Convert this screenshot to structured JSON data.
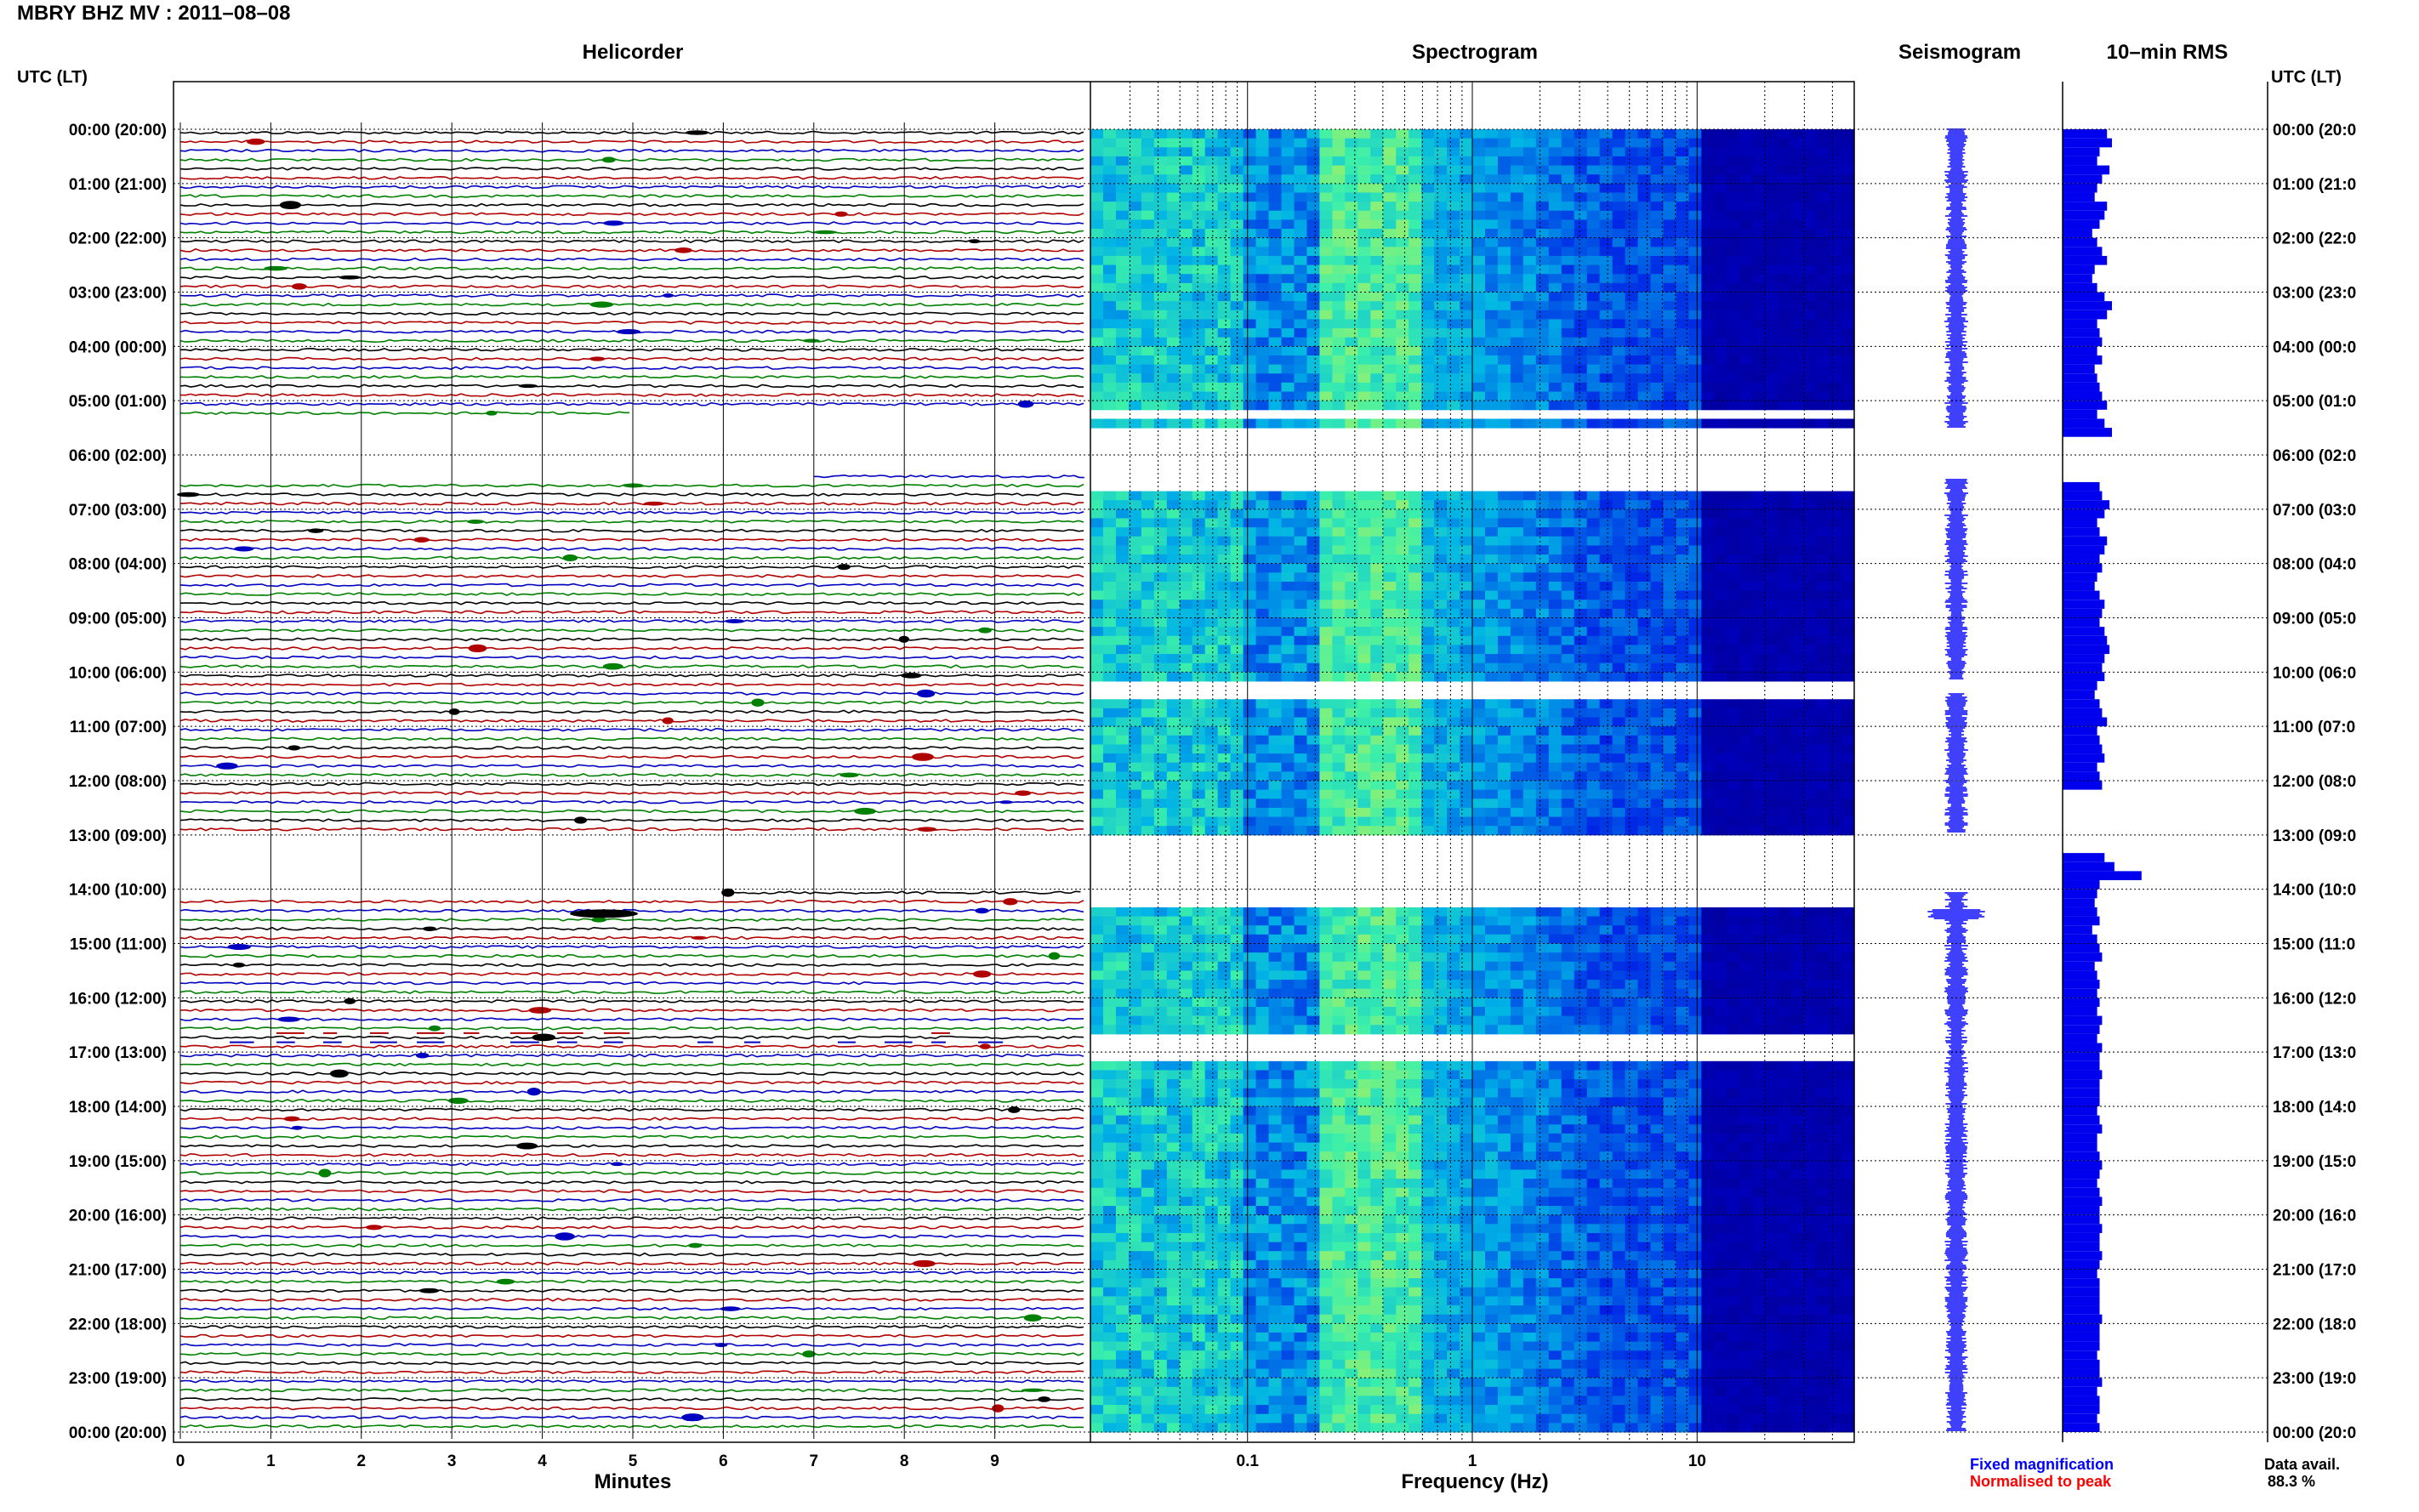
{
  "title": "MBRY BHZ MV : 2011–08–08",
  "left_axis_header": "UTC (LT)",
  "right_axis_header": "UTC (LT)",
  "panels": {
    "helicorder": "Helicorder",
    "spectrogram": "Spectrogram",
    "seismogram": "Seismogram",
    "rms": "10–min RMS"
  },
  "time_labels": [
    "00:00 (20:00)",
    "01:00 (21:00)",
    "02:00 (22:00)",
    "03:00 (23:00)",
    "04:00 (00:00)",
    "05:00 (01:00)",
    "06:00 (02:00)",
    "07:00 (03:00)",
    "08:00 (04:00)",
    "09:00 (05:00)",
    "10:00 (06:00)",
    "11:00 (07:00)",
    "12:00 (08:00)",
    "13:00 (09:00)",
    "14:00 (10:00)",
    "15:00 (11:00)",
    "16:00 (12:00)",
    "17:00 (13:00)",
    "18:00 (14:00)",
    "19:00 (15:00)",
    "20:00 (16:00)",
    "21:00 (17:00)",
    "22:00 (18:00)",
    "23:00 (19:00)",
    "00:00 (20:00)"
  ],
  "right_time_labels": [
    "00:00 (20:0",
    "01:00 (21:0",
    "02:00 (22:0",
    "03:00 (23:0",
    "04:00 (00:0",
    "05:00 (01:0",
    "06:00 (02:0",
    "07:00 (03:0",
    "08:00 (04:0",
    "09:00 (05:0",
    "10:00 (06:0",
    "11:00 (07:0",
    "12:00 (08:0",
    "13:00 (09:0",
    "14:00 (10:0",
    "15:00 (11:0",
    "16:00 (12:0",
    "17:00 (13:0",
    "18:00 (14:0",
    "19:00 (15:0",
    "20:00 (16:0",
    "21:00 (17:0",
    "22:00 (18:0",
    "23:00 (19:0",
    "00:00 (20:0"
  ],
  "minutes_axis": {
    "label": "Minutes",
    "ticks": [
      "0",
      "1",
      "2",
      "3",
      "4",
      "5",
      "6",
      "7",
      "8",
      "9"
    ]
  },
  "frequency_axis": {
    "label": "Frequency (Hz)",
    "ticks": [
      "0.1",
      "1",
      "10"
    ]
  },
  "legend": {
    "fixed": "Fixed magnification",
    "normalised": "Normalised to peak",
    "fixed_color": "#0000ff",
    "normalised_color": "#ff0000"
  },
  "data_avail": {
    "label": "Data avail.",
    "value": "88.3 %"
  },
  "colors": {
    "trace_cycle": [
      "#000000",
      "#b00000",
      "#0000c0",
      "#008000"
    ],
    "seismo": "#0000ff",
    "rms": "#0000ee"
  },
  "chart_data": {
    "type": "heatmap",
    "title": "MBRY BHZ MV : 2011–08–08",
    "helicorder": {
      "xlabel": "Minutes",
      "xlim": [
        0,
        10
      ],
      "rows_per_hour": 6,
      "hours": 24,
      "gaps_hours": [
        [
          5.25,
          6.45
        ],
        [
          13.0,
          14.1
        ]
      ],
      "notes": "6 traces per hour, colors cycling black/red/blue/green"
    },
    "spectrogram": {
      "xlabel": "Frequency (Hz)",
      "xscale": "log",
      "xlim": [
        0.02,
        50
      ],
      "gaps_hours": [
        [
          5.15,
          5.2
        ],
        [
          5.5,
          6.55
        ],
        [
          10.15,
          10.4
        ],
        [
          12.95,
          14.3
        ],
        [
          16.7,
          17.1
        ]
      ],
      "peak_band_hz": [
        0.2,
        0.6
      ]
    },
    "seismogram": {
      "gaps_hours": [
        [
          5.5,
          6.45
        ],
        [
          10.15,
          10.4
        ],
        [
          12.95,
          14.05
        ]
      ]
    },
    "rms_10min": {
      "values": [
        0.9,
        1.0,
        0.75,
        0.7,
        0.95,
        0.8,
        0.7,
        0.65,
        0.9,
        0.85,
        0.75,
        0.6,
        0.7,
        0.8,
        0.9,
        0.65,
        0.6,
        0.7,
        0.85,
        1.0,
        0.9,
        0.7,
        0.75,
        0.8,
        0.7,
        0.8,
        0.65,
        0.7,
        0.75,
        0.8,
        0.9,
        0.7,
        0.85,
        1.0,
        0.0,
        0.0,
        0.0,
        0.0,
        0.0,
        0.75,
        0.8,
        0.95,
        0.85,
        0.7,
        0.75,
        0.9,
        0.85,
        0.75,
        0.8,
        0.7,
        0.65,
        0.75,
        0.85,
        0.8,
        0.75,
        0.85,
        0.9,
        0.95,
        0.85,
        0.8,
        0.85,
        0.7,
        0.65,
        0.75,
        0.8,
        0.9,
        0.7,
        0.75,
        0.8,
        0.85,
        0.7,
        0.75,
        0.8,
        0.0,
        0.0,
        0.0,
        0.0,
        0.0,
        0.0,
        0.0,
        0.85,
        1.05,
        1.6,
        0.75,
        0.7,
        0.65,
        0.7,
        0.75,
        0.6,
        0.7,
        0.75,
        0.8,
        0.65,
        0.7,
        0.75,
        0.7,
        0.75,
        0.7,
        0.8,
        0.75,
        0.7,
        0.8,
        0.75,
        0.75,
        0.8,
        0.75,
        0.75,
        0.75,
        0.7,
        0.75,
        0.8,
        0.7,
        0.7,
        0.75,
        0.8,
        0.75,
        0.7,
        0.75,
        0.8,
        0.75,
        0.75,
        0.8,
        0.75,
        0.75,
        0.8,
        0.75,
        0.7,
        0.75,
        0.75,
        0.75,
        0.75,
        0.8,
        0.75,
        0.75,
        0.75,
        0.7,
        0.75,
        0.75,
        0.8,
        0.7,
        0.75,
        0.75,
        0.7,
        0.75
      ]
    }
  }
}
